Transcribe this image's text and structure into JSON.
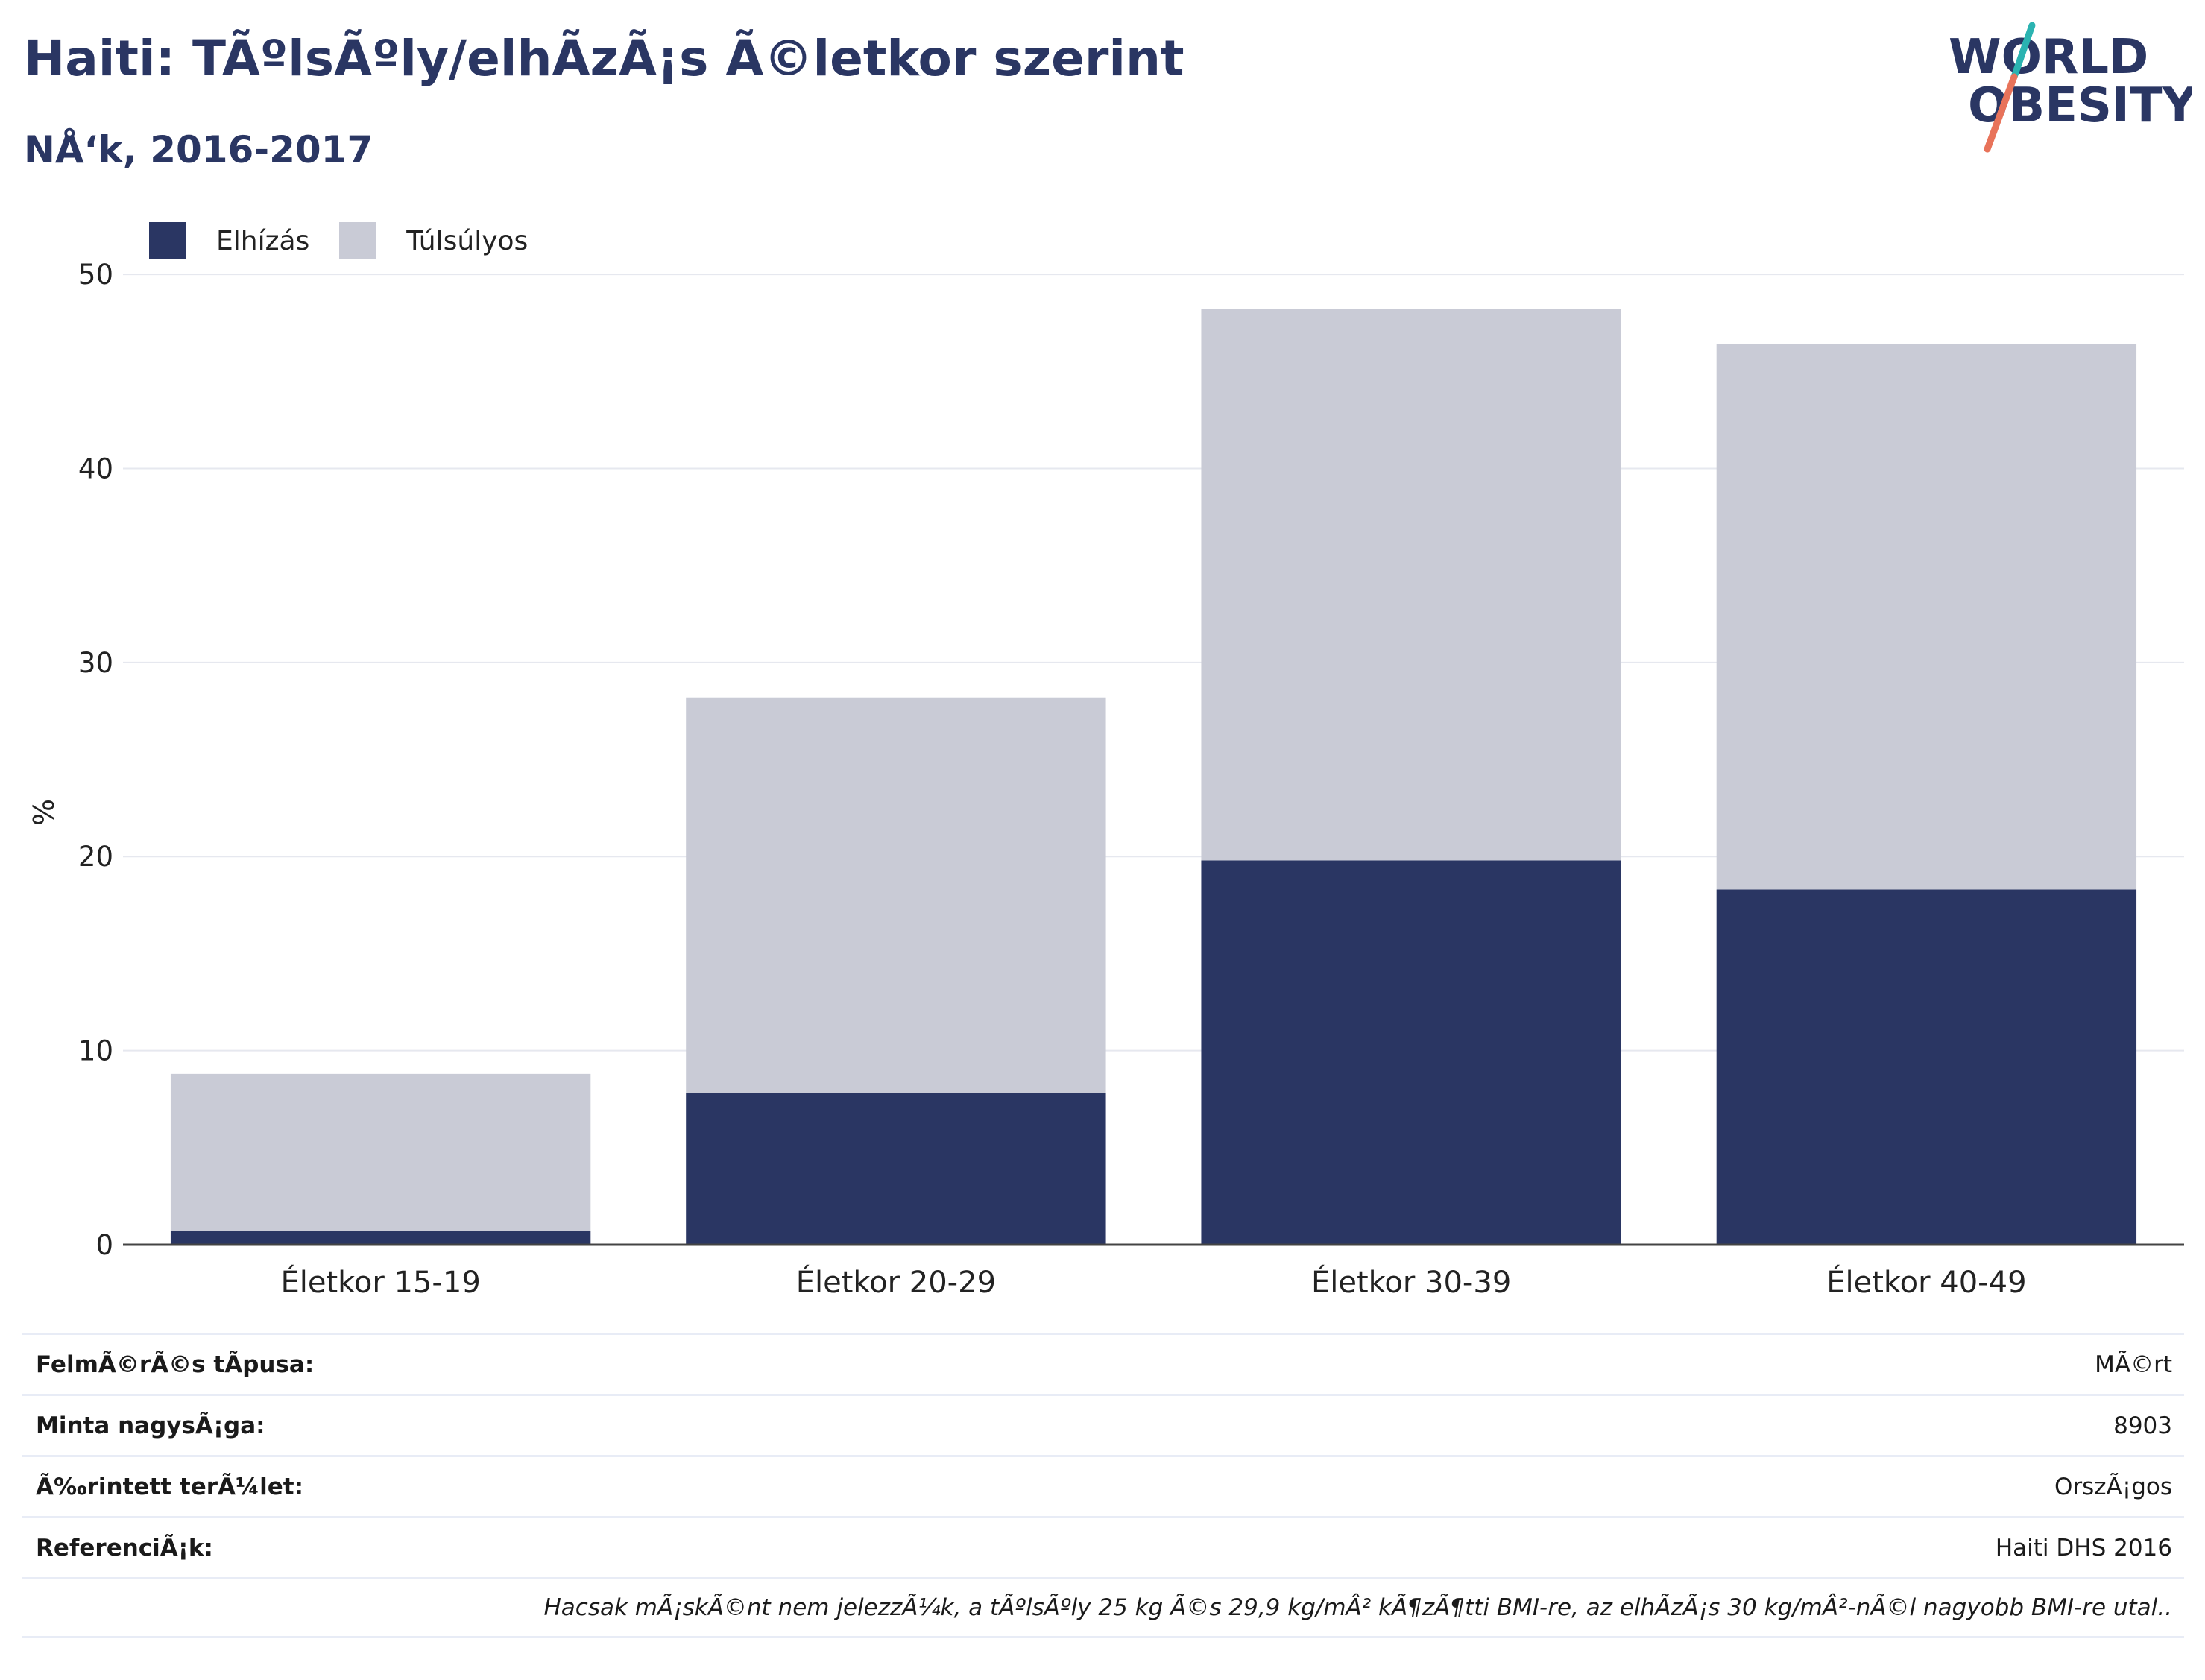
{
  "header": {
    "title": "Haiti: TÃºlsÃºly/elhÃ­zÃ¡s Ã©letkor szerint",
    "subtitle": "NÅ‘k, 2016-2017"
  },
  "logo": {
    "line1": "WORLD",
    "line2": "OBESITY"
  },
  "colors": {
    "obesity": "#2a3663",
    "overweight": "#c9cbd6",
    "title": "#2a3663",
    "logo_teal": "#2bb3b1",
    "logo_red": "#e8735a"
  },
  "legend": [
    {
      "label": "Elhízás",
      "color": "#2a3663"
    },
    {
      "label": "Túlsúlyos",
      "color": "#c9cbd6"
    }
  ],
  "chart_data": {
    "type": "bar",
    "stacked": true,
    "categories": [
      "Életkor 15-19",
      "Életkor 20-29",
      "Életkor 30-39",
      "Életkor 40-49"
    ],
    "series": [
      {
        "name": "Elhízás",
        "values": [
          0.7,
          7.8,
          19.8,
          18.3
        ]
      },
      {
        "name": "Túlsúlyos",
        "values": [
          8.1,
          20.4,
          28.4,
          28.1
        ]
      }
    ],
    "ylabel": "%",
    "xlabel": "",
    "ylim": [
      0,
      53
    ],
    "yticks": [
      0,
      10,
      20,
      30,
      40,
      50
    ],
    "grid": true,
    "legend_position": "top-left"
  },
  "meta": {
    "rows": [
      {
        "key": "FelmÃ©rÃ©s tÃ­pusa:",
        "value": "MÃ©rt"
      },
      {
        "key": "Minta nagysÃ¡ga:",
        "value": "8903"
      },
      {
        "key": "Ã‰rintett terÃ¼let:",
        "value": "OrszÃ¡gos"
      },
      {
        "key": "ReferenciÃ¡k:",
        "value": "Haiti DHS 2016"
      }
    ],
    "note": "Hacsak mÃ¡skÃ©nt nem jelezzÃ¼k, a tÃºlsÃºly 25 kg Ã©s 29,9 kg/mÂ² kÃ¶zÃ¶tti BMI-re, az elhÃ­zÃ¡s 30 kg/mÂ²-nÃ©l nagyobb BMI-re utal.."
  }
}
